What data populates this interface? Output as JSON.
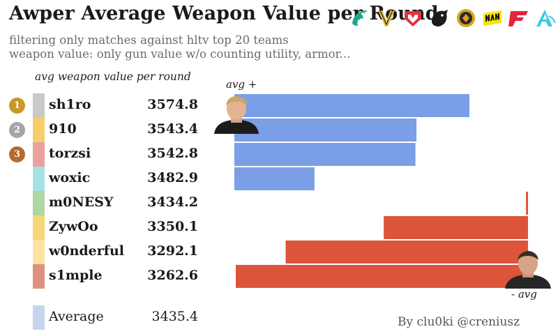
{
  "header": {
    "title": "Awper Average Weapon Value per Round",
    "subtitle_1": "filtering only matches against hltv top 20 teams",
    "subtitle_2": "weapon value: only gun value w/o counting utility, armor...",
    "column_header": "avg weapon value per round"
  },
  "team_logos": [
    "falcons-logo-icon",
    "vitality-logo-icon",
    "mouz-logo-icon",
    "spirit-logo-icon",
    "mongolz-logo-icon",
    "navi-logo-icon",
    "faze-logo-icon",
    "liquid-logo-icon"
  ],
  "players": [
    {
      "rank": "1",
      "name": "sh1ro",
      "value_label": "3574.8",
      "swatch": "#c9c9c9",
      "medal": "#c8982a"
    },
    {
      "rank": "2",
      "name": "910",
      "value_label": "3543.4",
      "swatch": "#f5cf6a",
      "medal": "#a6a6a6"
    },
    {
      "rank": "3",
      "name": "torzsi",
      "value_label": "3542.8",
      "swatch": "#e9a19d",
      "medal": "#b6692c"
    },
    {
      "rank": "",
      "name": "woxic",
      "value_label": "3482.9",
      "swatch": "#a8e1e3"
    },
    {
      "rank": "",
      "name": "m0NESY",
      "value_label": "3434.2",
      "swatch": "#b0d6a4"
    },
    {
      "rank": "",
      "name": "ZywOo",
      "value_label": "3350.1",
      "swatch": "#f7d678"
    },
    {
      "rank": "",
      "name": "w0nderful",
      "value_label": "3292.1",
      "swatch": "#fde3a3"
    },
    {
      "rank": "",
      "name": "s1mple",
      "value_label": "3262.6",
      "swatch": "#e0907e"
    }
  ],
  "average": {
    "name": "Average",
    "value_label": "3435.4",
    "swatch": "#c8d5ee"
  },
  "chart_data": {
    "type": "bar",
    "orientation": "horizontal diverging from average",
    "categories": [
      "sh1ro",
      "910",
      "torzsi",
      "woxic",
      "m0NESY",
      "ZywOo",
      "w0nderful",
      "s1mple"
    ],
    "values": [
      3574.8,
      3543.4,
      3542.8,
      3482.9,
      3434.2,
      3350.1,
      3292.1,
      3262.6
    ],
    "baseline": 3435.4,
    "colors": {
      "above": "#7b9fe6",
      "below": "#dc553a"
    },
    "annotations": [
      "avg +",
      "- avg"
    ]
  },
  "footer": {
    "byline": "By clu0ki @creniusz"
  }
}
